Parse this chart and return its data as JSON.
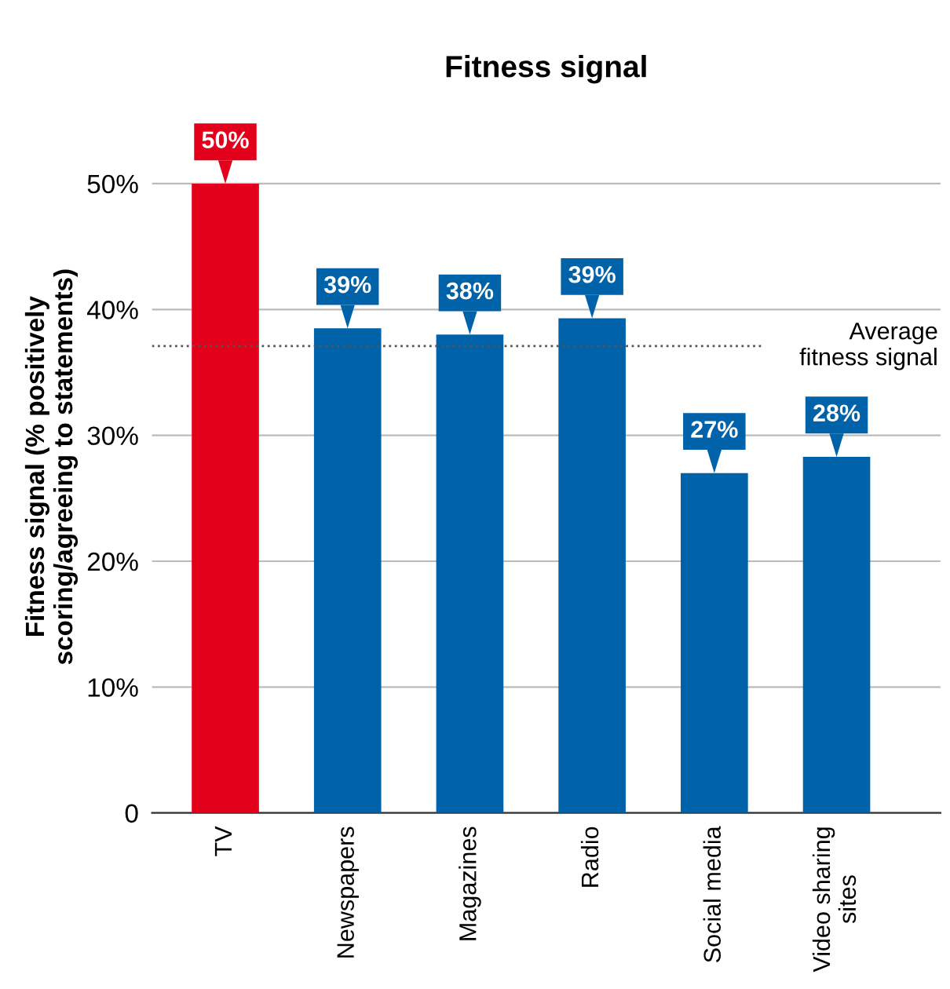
{
  "chart_data": {
    "type": "bar",
    "title": "Fitness signal",
    "ylabel": "Fitness signal (% positively\nscoring/agreeing to statements)",
    "categories": [
      "TV",
      "Newspapers",
      "Magazines",
      "Radio",
      "Social media",
      "Video sharing\nsites"
    ],
    "values": [
      50,
      38.5,
      38,
      39.3,
      27,
      28.3
    ],
    "colors": [
      "#e3001b",
      "#0062a8",
      "#0062a8",
      "#0062a8",
      "#0062a8",
      "#0062a8"
    ],
    "value_labels": [
      "50%",
      "39%",
      "38%",
      "39%",
      "27%",
      "28%"
    ],
    "ylim": [
      0,
      55
    ],
    "yticks": [
      {
        "value": 0,
        "label": "0"
      },
      {
        "value": 10,
        "label": "10%"
      },
      {
        "value": 20,
        "label": "20%"
      },
      {
        "value": 30,
        "label": "30%"
      },
      {
        "value": 40,
        "label": "40%"
      },
      {
        "value": 50,
        "label": "50%"
      }
    ],
    "ref_lines": [
      {
        "axis": "y",
        "value": 37.1,
        "label": "Average\nfitness signal",
        "line_style": "dotted",
        "color": "#555555"
      }
    ],
    "grid": "y",
    "legend": false
  }
}
